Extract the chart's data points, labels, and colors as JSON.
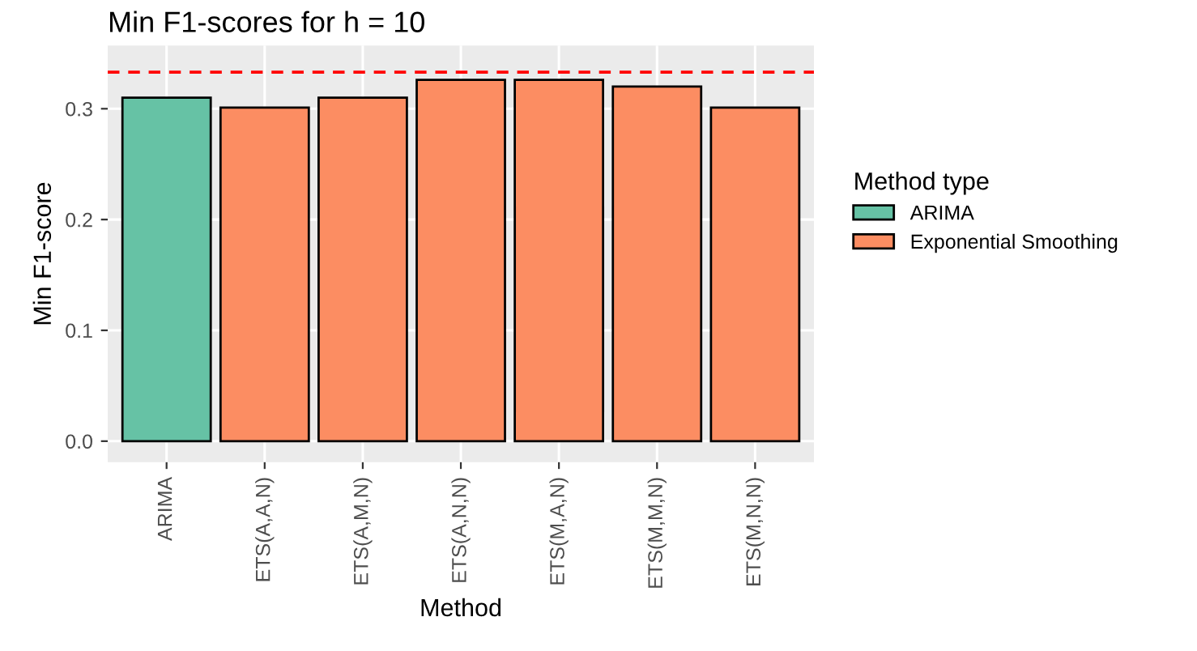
{
  "chart_data": {
    "type": "bar",
    "title": "Min F1-scores for h = 10",
    "xlabel": "Method",
    "ylabel": "Min F1-score",
    "legend_title": "Method type",
    "categories": [
      "ARIMA",
      "ETS(A,A,N)",
      "ETS(A,M,N)",
      "ETS(A,N,N)",
      "ETS(M,A,N)",
      "ETS(M,M,N)",
      "ETS(M,N,N)"
    ],
    "series": [
      {
        "name": "ARIMA",
        "color": "#66c2a5",
        "values": [
          0.31,
          null,
          null,
          null,
          null,
          null,
          null
        ]
      },
      {
        "name": "Exponential Smoothing",
        "color": "#fc8d62",
        "values": [
          null,
          0.301,
          0.31,
          0.326,
          0.326,
          0.32,
          0.301
        ]
      }
    ],
    "ylim": [
      -0.019,
      0.357
    ],
    "yticks": [
      {
        "value": 0,
        "label": "0.0"
      },
      0.1,
      0.2,
      0.3
    ],
    "ref_lines": [
      {
        "axis": "y",
        "value": 0.333,
        "color": "#ff0000",
        "line_style": "dashed"
      }
    ],
    "grid": true,
    "legend": "right"
  }
}
